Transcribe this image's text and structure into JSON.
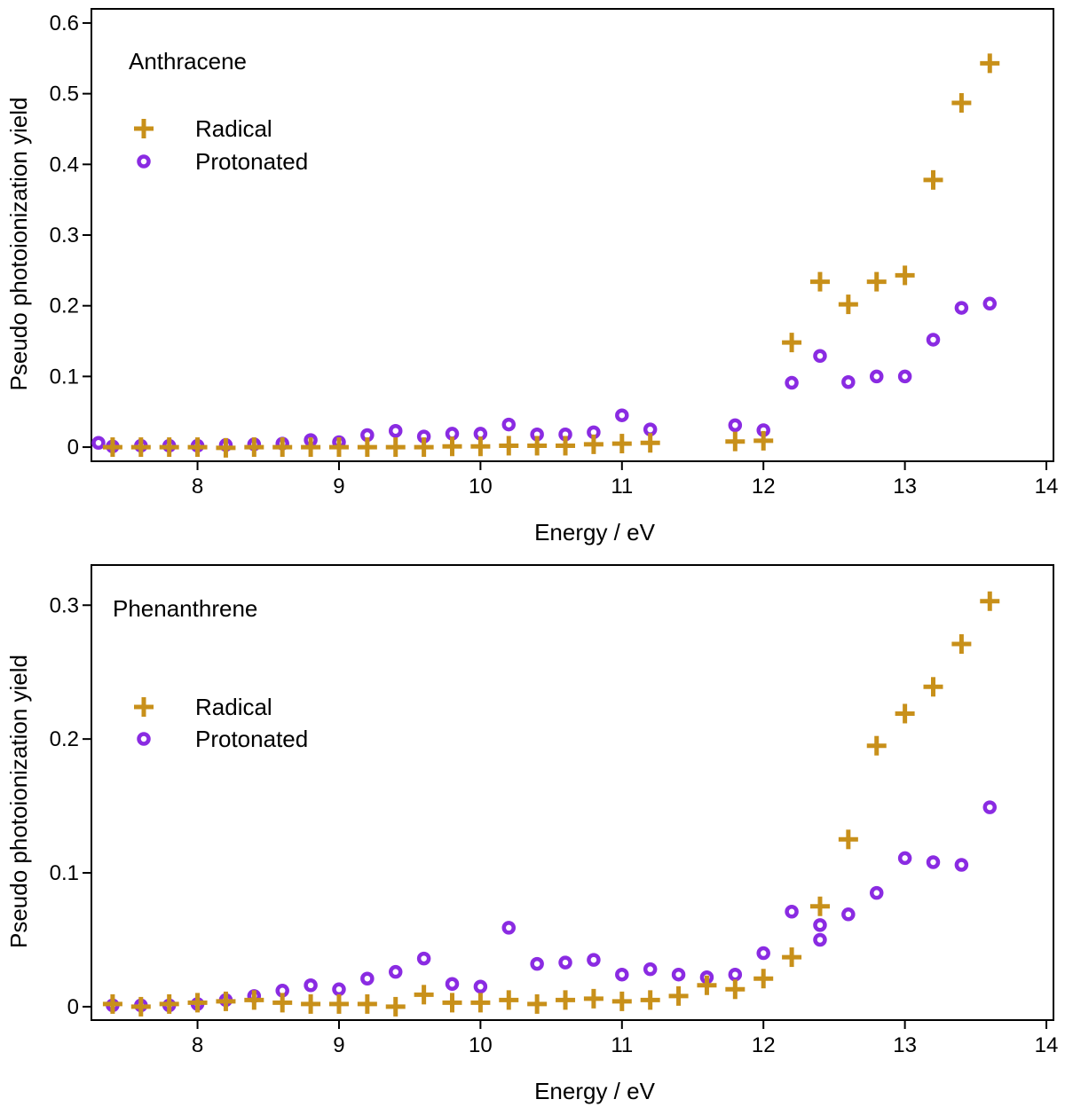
{
  "chart_data": [
    {
      "type": "scatter",
      "title": "Anthracene",
      "xlabel": "Energy / eV",
      "ylabel": "Pseudo photoionization yield",
      "xlim": [
        7.25,
        14.05
      ],
      "ylim": [
        -0.02,
        0.62
      ],
      "xticks": [
        8,
        9,
        10,
        11,
        12,
        13,
        14
      ],
      "yticks": [
        0,
        0.1,
        0.2,
        0.3,
        0.4,
        0.5,
        0.6
      ],
      "ytick_labels": [
        "0",
        "0.1",
        "0.2",
        "0.3",
        "0.4",
        "0.5",
        "0.6"
      ],
      "legend_position": "top-left",
      "series": [
        {
          "name": "Radical",
          "marker": "plus",
          "color": "#c8901a",
          "x": [
            7.4,
            7.6,
            7.8,
            8.0,
            8.2,
            8.4,
            8.6,
            8.8,
            9.0,
            9.2,
            9.4,
            9.6,
            9.8,
            10.0,
            10.2,
            10.4,
            10.6,
            10.8,
            11.0,
            11.2,
            11.8,
            12.0,
            12.2,
            12.4,
            12.6,
            12.8,
            13.0,
            13.2,
            13.4,
            13.6
          ],
          "y": [
            0.0,
            0.0,
            0.0,
            0.0,
            -0.001,
            0.0,
            0.0,
            0.0,
            0.0,
            0.0,
            0.0,
            0.0,
            0.001,
            0.001,
            0.002,
            0.002,
            0.002,
            0.004,
            0.005,
            0.006,
            0.008,
            0.009,
            0.148,
            0.234,
            0.202,
            0.234,
            0.243,
            0.378,
            0.487,
            0.543
          ]
        },
        {
          "name": "Protonated",
          "marker": "circle",
          "color": "#8a2be2",
          "x": [
            7.3,
            7.4,
            7.6,
            7.8,
            8.0,
            8.2,
            8.4,
            8.6,
            8.8,
            9.0,
            9.2,
            9.4,
            9.6,
            9.8,
            10.0,
            10.2,
            10.4,
            10.6,
            10.8,
            11.0,
            11.2,
            11.8,
            12.0,
            12.2,
            12.4,
            12.6,
            12.8,
            13.0,
            13.2,
            13.4,
            13.6
          ],
          "y": [
            0.006,
            0.001,
            0.002,
            0.002,
            0.002,
            0.003,
            0.004,
            0.005,
            0.01,
            0.007,
            0.017,
            0.023,
            0.015,
            0.019,
            0.019,
            0.032,
            0.018,
            0.018,
            0.021,
            0.045,
            0.025,
            0.031,
            0.024,
            0.091,
            0.129,
            0.092,
            0.1,
            0.1,
            0.152,
            0.197,
            0.203
          ]
        }
      ]
    },
    {
      "type": "scatter",
      "title": "Phenanthrene",
      "xlabel": "Energy / eV",
      "ylabel": "Pseudo photoionization yield",
      "xlim": [
        7.25,
        14.05
      ],
      "ylim": [
        -0.01,
        0.33
      ],
      "xticks": [
        8,
        9,
        10,
        11,
        12,
        13,
        14
      ],
      "yticks": [
        0,
        0.1,
        0.2,
        0.3
      ],
      "ytick_labels": [
        "0",
        "0.1",
        "0.2",
        "0.3"
      ],
      "legend_position": "upper-left",
      "series": [
        {
          "name": "Radical",
          "marker": "plus",
          "color": "#c8901a",
          "x": [
            7.4,
            7.6,
            7.8,
            8.0,
            8.2,
            8.4,
            8.6,
            8.8,
            9.0,
            9.2,
            9.4,
            9.6,
            9.8,
            10.0,
            10.2,
            10.4,
            10.6,
            10.8,
            11.0,
            11.2,
            11.4,
            11.6,
            11.8,
            12.0,
            12.2,
            12.4,
            12.6,
            12.8,
            13.0,
            13.2,
            13.4,
            13.6
          ],
          "y": [
            0.002,
            0.0,
            0.002,
            0.003,
            0.004,
            0.005,
            0.003,
            0.002,
            0.002,
            0.002,
            0.0,
            0.009,
            0.003,
            0.003,
            0.005,
            0.002,
            0.005,
            0.006,
            0.004,
            0.005,
            0.008,
            0.016,
            0.013,
            0.021,
            0.037,
            0.075,
            0.125,
            0.195,
            0.219,
            0.239,
            0.271,
            0.303
          ]
        },
        {
          "name": "Protonated",
          "marker": "circle",
          "color": "#8a2be2",
          "x": [
            7.4,
            7.6,
            7.8,
            8.0,
            8.2,
            8.4,
            8.6,
            8.8,
            9.0,
            9.2,
            9.4,
            9.6,
            9.8,
            10.0,
            10.2,
            10.4,
            10.6,
            10.8,
            11.0,
            11.2,
            11.4,
            11.6,
            11.8,
            12.0,
            12.2,
            12.4,
            12.4,
            12.6,
            12.8,
            13.0,
            13.2,
            13.4,
            13.6
          ],
          "y": [
            0.001,
            0.001,
            0.001,
            0.002,
            0.005,
            0.008,
            0.012,
            0.016,
            0.013,
            0.021,
            0.026,
            0.036,
            0.017,
            0.015,
            0.059,
            0.032,
            0.033,
            0.035,
            0.024,
            0.028,
            0.024,
            0.022,
            0.024,
            0.04,
            0.071,
            0.061,
            0.05,
            0.069,
            0.085,
            0.111,
            0.108,
            0.106,
            0.149
          ]
        }
      ]
    }
  ]
}
